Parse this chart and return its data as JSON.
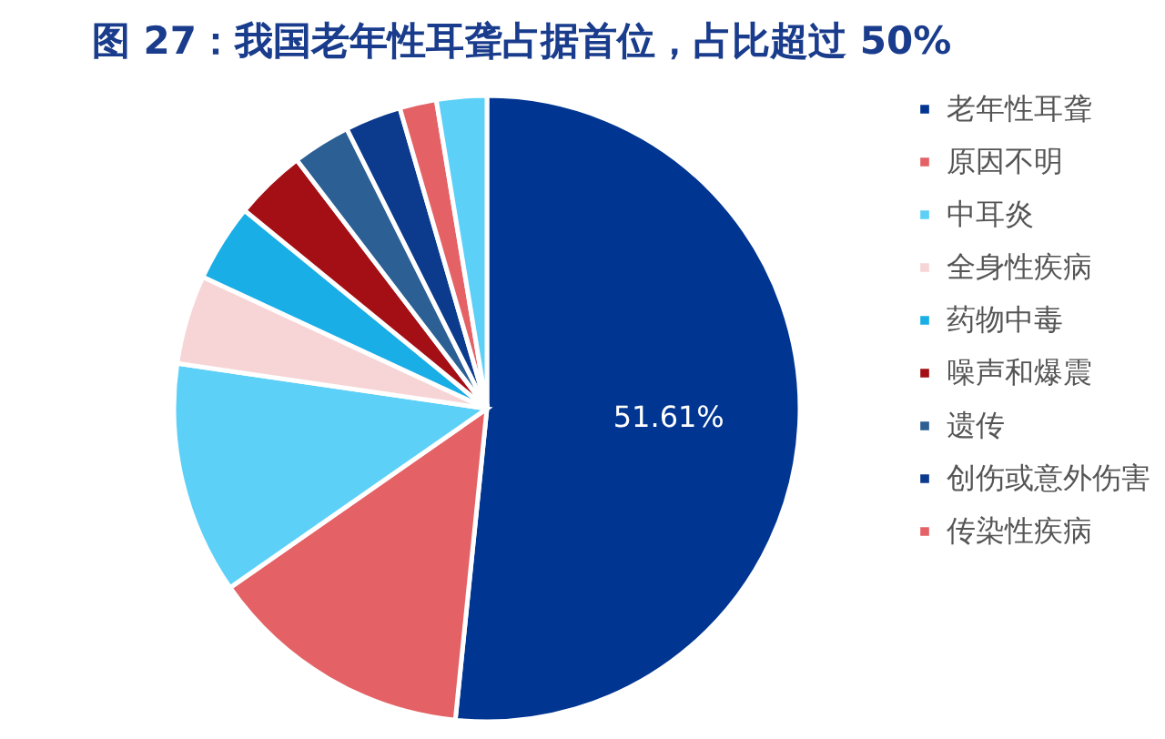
{
  "chart_data": {
    "type": "pie",
    "title": "图 27：我国老年性耳聋占据首位，占比超过 50%",
    "categories": [
      "老年性耳聋",
      "原因不明",
      "中耳炎",
      "全身性疾病",
      "药物中毒",
      "噪声和爆震",
      "遗传",
      "创伤或意外伤害",
      "传染性疾病",
      null
    ],
    "values": [
      51.61,
      13.7,
      12.0,
      4.6,
      4.0,
      3.7,
      3.0,
      2.9,
      1.9,
      2.59
    ],
    "colors": [
      "#003591",
      "#e46266",
      "#5dd0f7",
      "#f7d5d6",
      "#19aee6",
      "#a30f14",
      "#2c5f94",
      "#0c3a8c",
      "#e46266",
      "#5dd0f7"
    ],
    "value_labels": [
      "51.61%",
      null,
      null,
      null,
      null,
      null,
      null,
      null,
      null,
      null
    ],
    "legend": "right"
  }
}
